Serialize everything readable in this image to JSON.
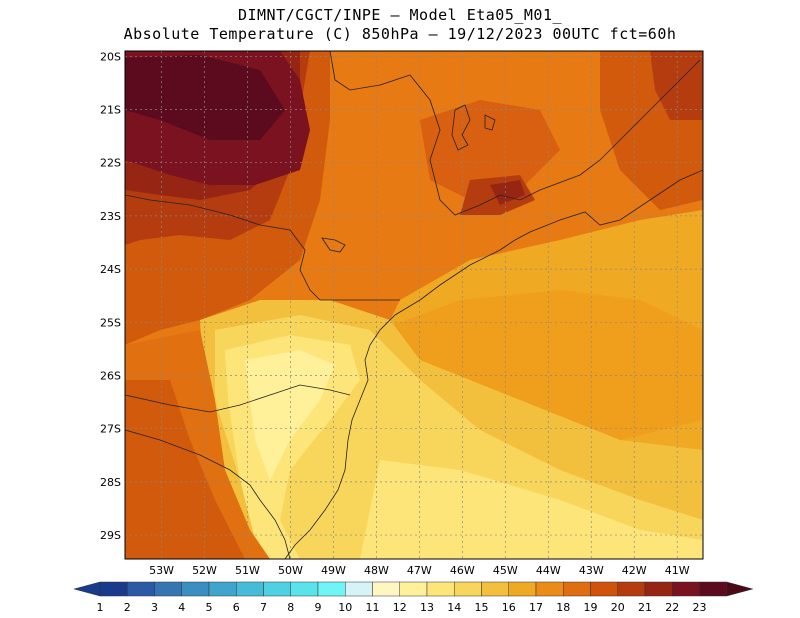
{
  "title_line1": "DIMNT/CGCT/INPE –  Model Eta05_M01_",
  "title_line2": "Absolute Temperature (C) 850hPa –  19/12/2023 00UTC fct=60h",
  "map": {
    "lon_range": [
      -53.85,
      -40.4
    ],
    "lat_range": [
      -29.45,
      -19.9
    ],
    "lon_labels": [
      "53W",
      "52W",
      "51W",
      "50W",
      "49W",
      "48W",
      "47W",
      "46W",
      "45W",
      "44W",
      "43W",
      "42W",
      "41W"
    ],
    "lat_labels": [
      "20S",
      "21S",
      "22S",
      "23S",
      "24S",
      "25S",
      "26S",
      "27S",
      "28S",
      "29S"
    ],
    "gridlines": true
  },
  "colorbar": {
    "labels": [
      "1",
      "2",
      "3",
      "4",
      "5",
      "6",
      "7",
      "8",
      "9",
      "10",
      "11",
      "12",
      "13",
      "14",
      "15",
      "16",
      "17",
      "18",
      "19",
      "20",
      "21",
      "22",
      "23"
    ],
    "colors": [
      "#1a3a8c",
      "#2a5aa6",
      "#3575b4",
      "#3b8ec1",
      "#3fa5cd",
      "#46bcd8",
      "#4ed1e2",
      "#5be3ec",
      "#6ff5f5",
      "#d6f3f8",
      "#fff6c2",
      "#fff09a",
      "#fde57a",
      "#f8d65c",
      "#f3c03e",
      "#f0a922",
      "#ec8c18",
      "#e06d0f",
      "#d0520b",
      "#b43c0f",
      "#962514",
      "#7a1220",
      "#5c0a1e"
    ],
    "arrow_left_color": "#1a3a8c",
    "arrow_right_color": "#4a0a18"
  }
}
